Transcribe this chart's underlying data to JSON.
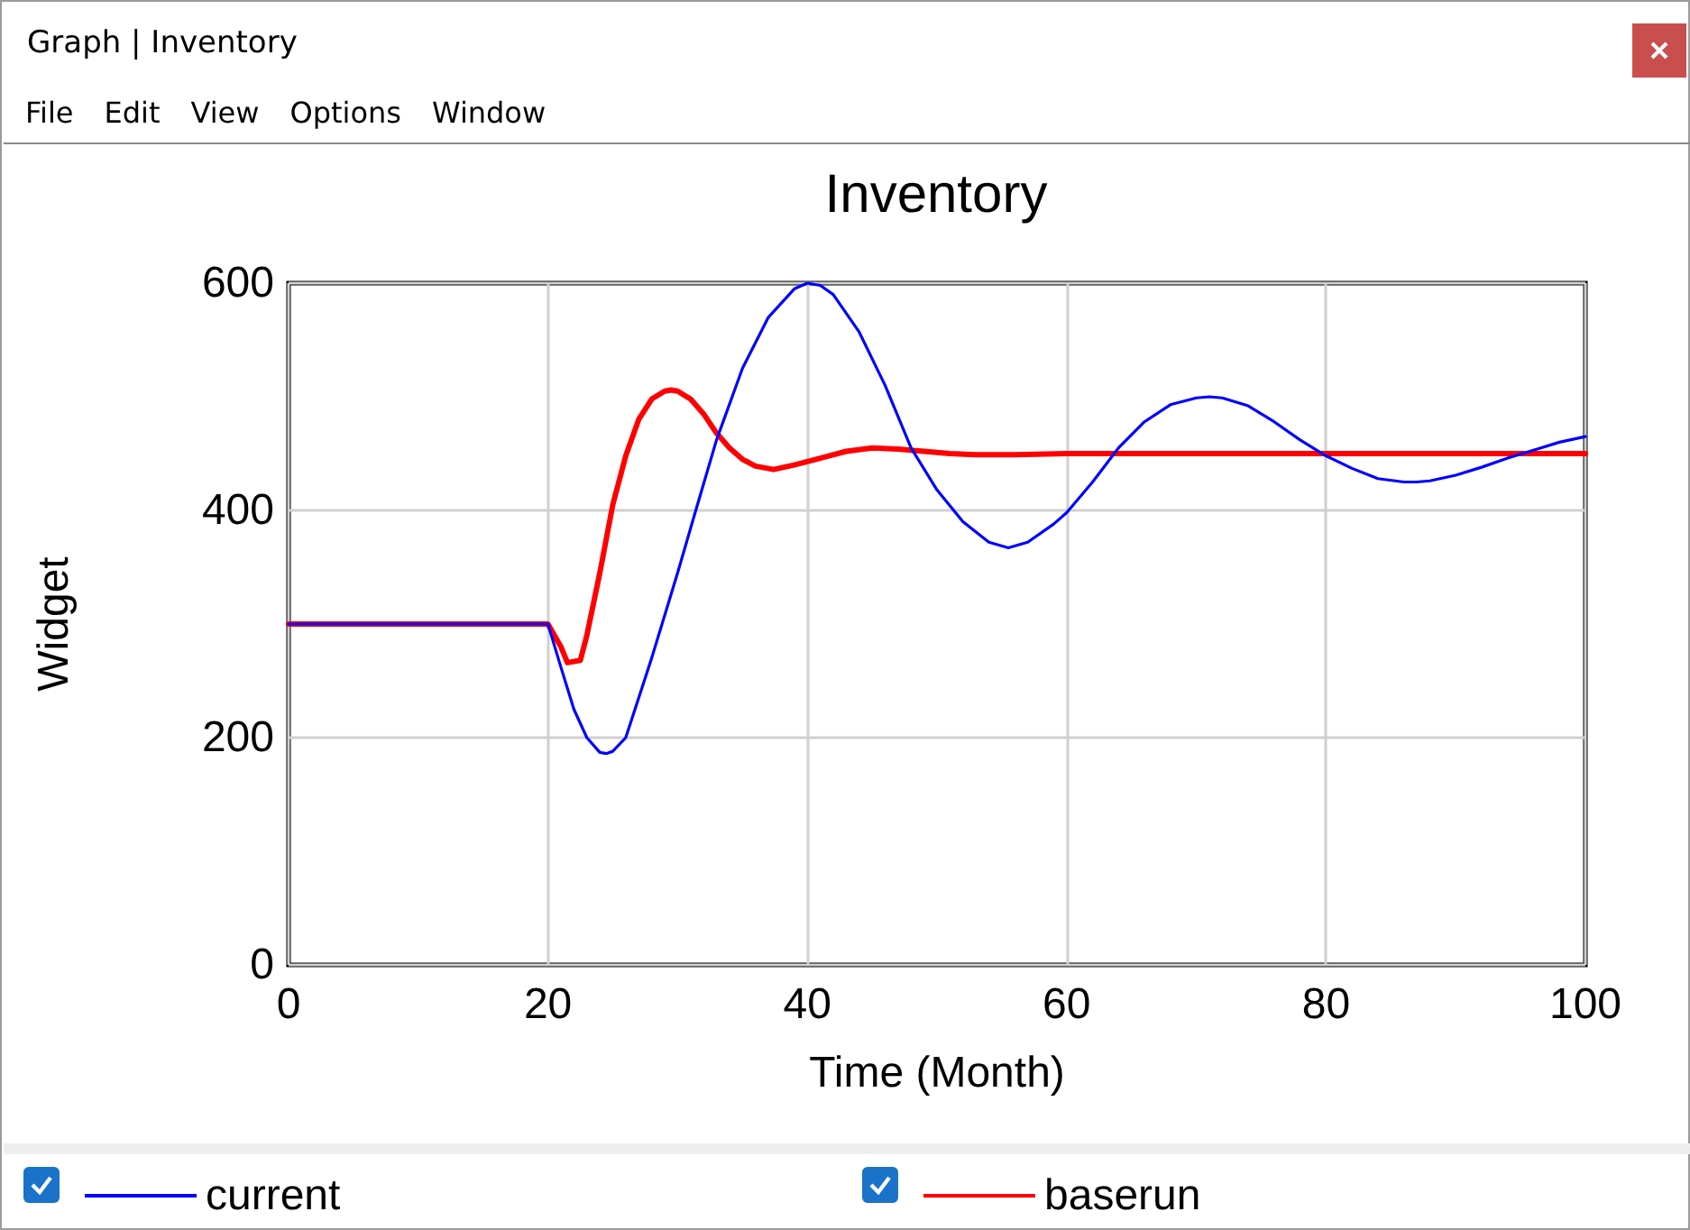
{
  "chart_data": {
    "type": "line",
    "title": "Inventory",
    "xlabel": "Time (Month)",
    "ylabel": "Widget",
    "annotations": [
      "Graph | Inventory",
      "File",
      "Edit",
      "View",
      "Options",
      "Window"
    ],
    "xlim": [
      0,
      100
    ],
    "xticks": [
      0,
      20,
      40,
      60,
      80,
      100
    ],
    "ylim": [
      0,
      600
    ],
    "yticks": [
      0,
      200,
      400,
      600
    ],
    "grid": true,
    "legend": "bottom",
    "marker": "none",
    "line_style": "solid",
    "series": [
      {
        "name": "current",
        "color": "#0000ff",
        "x": [
          0,
          20,
          21,
          22,
          23,
          24,
          24.5,
          25,
          26,
          28,
          30,
          31.4,
          33,
          35,
          37,
          39,
          40,
          41,
          42,
          44,
          46,
          48,
          50,
          52,
          54,
          55.5,
          57,
          59,
          60,
          62,
          64,
          66,
          68,
          70,
          71,
          72,
          74,
          76,
          78,
          80,
          82,
          84,
          86,
          87,
          88,
          90,
          92,
          94,
          96,
          98,
          100
        ],
        "values": [
          300,
          300,
          262,
          225,
          200,
          187,
          186,
          188,
          200,
          270,
          345,
          400,
          462,
          525,
          570,
          595,
          600,
          598,
          590,
          557,
          510,
          455,
          418,
          390,
          372,
          367,
          372,
          388,
          398,
          425,
          455,
          478,
          493,
          499,
          500,
          499,
          492,
          478,
          462,
          448,
          437,
          428,
          425,
          425,
          426,
          431,
          438,
          446,
          453,
          460,
          465
        ]
      },
      {
        "name": "baserun",
        "color": "#ff0000",
        "x": [
          0,
          20,
          21,
          21.5,
          22.5,
          23,
          24,
          25,
          26,
          27,
          28,
          29,
          29.5,
          30,
          31,
          32,
          33,
          34,
          35,
          36,
          37.4,
          39,
          41,
          43,
          45,
          47,
          49,
          51,
          53,
          56,
          60,
          70,
          80,
          90,
          100
        ],
        "values": [
          300,
          300,
          280,
          266,
          268,
          290,
          345,
          405,
          448,
          480,
          498,
          505,
          506,
          505,
          498,
          485,
          468,
          455,
          445,
          439,
          436,
          440,
          446,
          452,
          455,
          454,
          452,
          450,
          449,
          449,
          450,
          450,
          450,
          450,
          450
        ]
      }
    ]
  }
}
